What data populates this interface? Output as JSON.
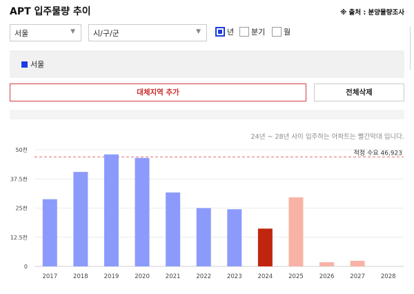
{
  "header": {
    "title": "APT 입주물량 추이",
    "source": "※ 출처 : 분양물량조사"
  },
  "filters": {
    "city": "서울",
    "district": "시/구/군",
    "period_options": [
      {
        "label": "년",
        "checked": true
      },
      {
        "label": "분기",
        "checked": false
      },
      {
        "label": "월",
        "checked": false
      }
    ]
  },
  "selected_region": {
    "label": "서울",
    "color": "#1b3ce0"
  },
  "buttons": {
    "add_region": "대체지역 추가",
    "clear_all": "전체삭제"
  },
  "note": "24년 ~ 28년 사이 입주하는 아파트는 빨간막대 입니다.",
  "chart_data": {
    "type": "bar",
    "categories": [
      "2017",
      "2018",
      "2019",
      "2020",
      "2021",
      "2022",
      "2023",
      "2024",
      "2025",
      "2026",
      "2027",
      "2028"
    ],
    "values": [
      28800,
      40500,
      48000,
      46500,
      31700,
      25000,
      24500,
      16200,
      29600,
      1800,
      2400,
      0
    ],
    "bar_colors": [
      "#8c9bfb",
      "#8c9bfb",
      "#8c9bfb",
      "#8c9bfb",
      "#8c9bfb",
      "#8c9bfb",
      "#8c9bfb",
      "#c0260f",
      "#f8b3a6",
      "#f8b3a6",
      "#f8b3a6",
      "#f8b3a6"
    ],
    "y_ticks": [
      {
        "value": 0,
        "label": "0"
      },
      {
        "value": 12500,
        "label": "12.5천"
      },
      {
        "value": 25000,
        "label": "25천"
      },
      {
        "value": 37500,
        "label": "37.5천"
      },
      {
        "value": 50000,
        "label": "50천"
      }
    ],
    "ylim": [
      0,
      50000
    ],
    "reference_line": {
      "value": 46923,
      "label": "적정 수요 46,923",
      "color": "#e26a6a"
    },
    "grid": true
  }
}
